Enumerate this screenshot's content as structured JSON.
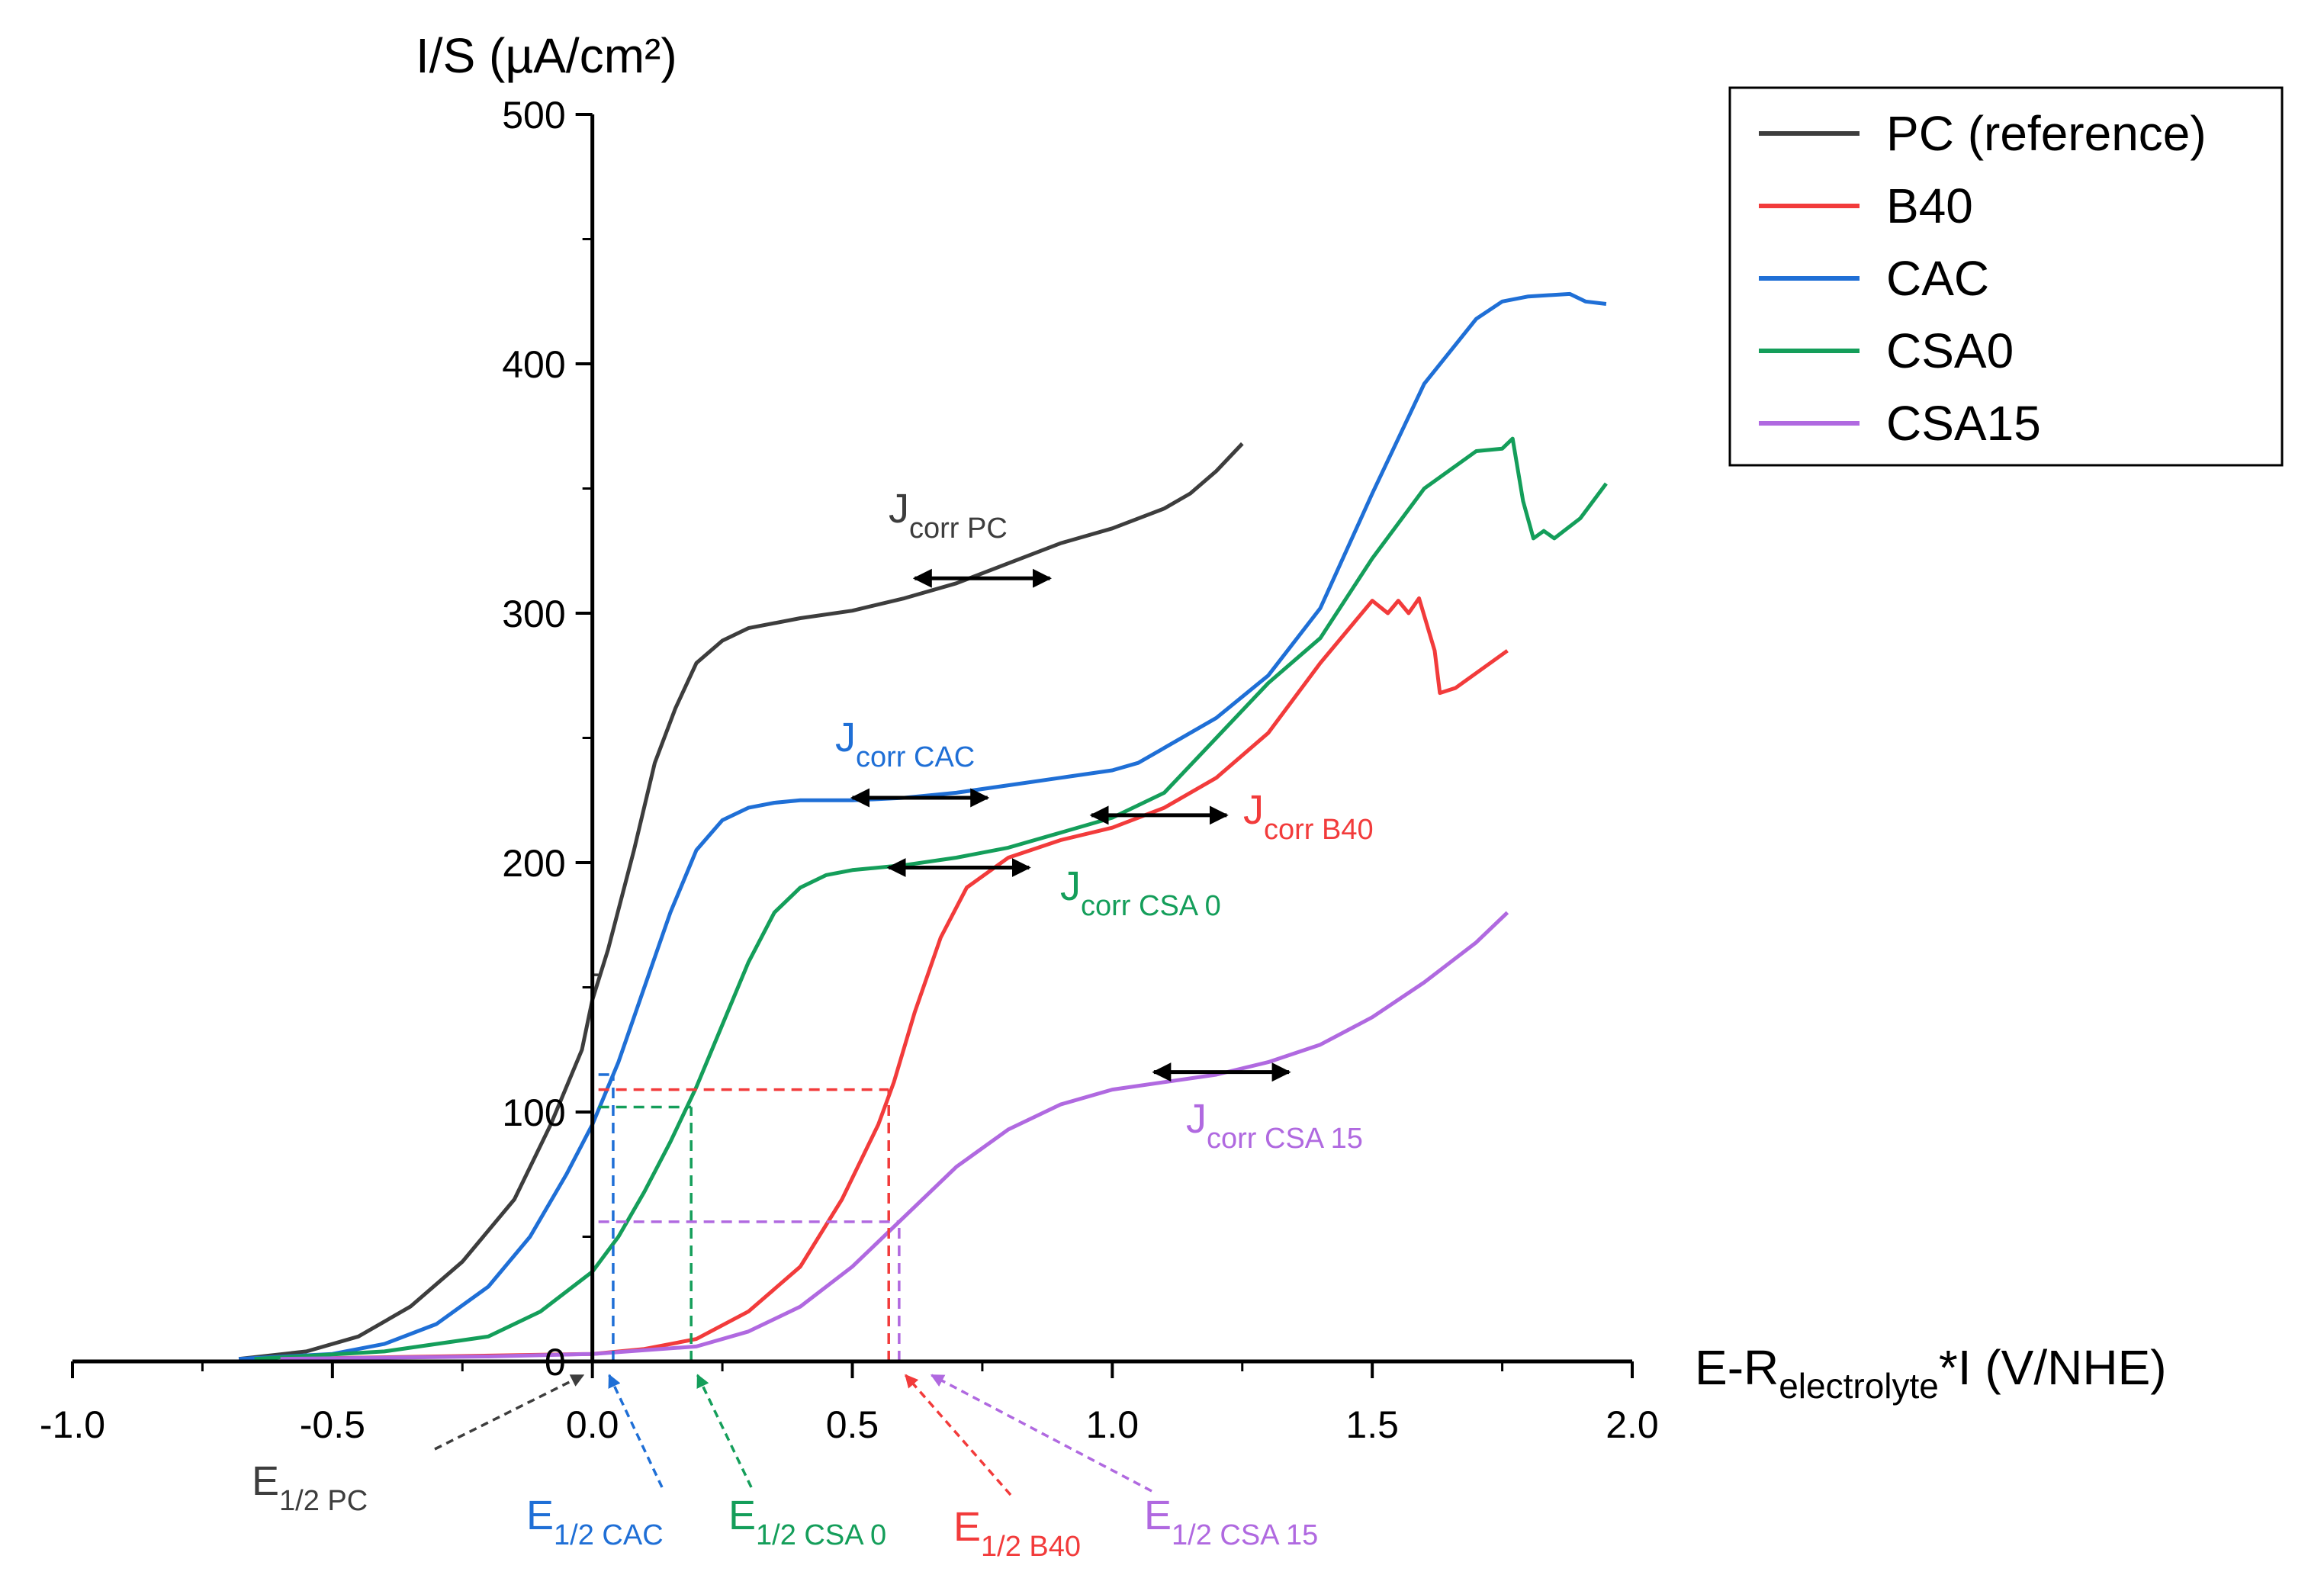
{
  "chart_data": {
    "type": "line",
    "title": "",
    "xlabel": {
      "main": "E-R",
      "sub": "electrolyte",
      "tail": "*I (V/NHE)"
    },
    "ylabel": "I/S (µA/cm²)",
    "xlim": [
      -1.0,
      2.0
    ],
    "ylim": [
      0,
      500
    ],
    "x_ticks": [
      -1.0,
      -0.5,
      0.0,
      0.5,
      1.0,
      1.5,
      2.0
    ],
    "x_tick_labels": [
      "-1.0",
      "-0.5",
      "0.0",
      "0.5",
      "1.0",
      "1.5",
      "2.0"
    ],
    "y_ticks": [
      0,
      100,
      200,
      300,
      400,
      500
    ],
    "y_tick_labels": [
      "0",
      "100",
      "200",
      "300",
      "400",
      "500"
    ],
    "grid": false,
    "legend_position": "top-right",
    "series": [
      {
        "name": "PC (reference)",
        "color": "#3d3d3d",
        "points": [
          [
            -0.68,
            1
          ],
          [
            -0.55,
            4
          ],
          [
            -0.45,
            10
          ],
          [
            -0.35,
            22
          ],
          [
            -0.25,
            40
          ],
          [
            -0.15,
            65
          ],
          [
            -0.08,
            95
          ],
          [
            -0.02,
            125
          ],
          [
            0.0,
            145
          ],
          [
            0.03,
            165
          ],
          [
            0.08,
            205
          ],
          [
            0.12,
            240
          ],
          [
            0.16,
            262
          ],
          [
            0.2,
            280
          ],
          [
            0.25,
            289
          ],
          [
            0.3,
            294
          ],
          [
            0.4,
            298
          ],
          [
            0.5,
            301
          ],
          [
            0.6,
            306
          ],
          [
            0.7,
            312
          ],
          [
            0.8,
            320
          ],
          [
            0.9,
            328
          ],
          [
            1.0,
            334
          ],
          [
            1.1,
            342
          ],
          [
            1.15,
            348
          ],
          [
            1.2,
            357
          ],
          [
            1.25,
            368
          ]
        ]
      },
      {
        "name": "B40",
        "color": "#f23b3b",
        "points": [
          [
            -0.6,
            1
          ],
          [
            -0.3,
            2
          ],
          [
            0.0,
            3
          ],
          [
            0.1,
            5
          ],
          [
            0.2,
            9
          ],
          [
            0.3,
            20
          ],
          [
            0.4,
            38
          ],
          [
            0.48,
            65
          ],
          [
            0.55,
            95
          ],
          [
            0.58,
            112
          ],
          [
            0.62,
            140
          ],
          [
            0.67,
            170
          ],
          [
            0.72,
            190
          ],
          [
            0.8,
            202
          ],
          [
            0.9,
            209
          ],
          [
            1.0,
            214
          ],
          [
            1.1,
            222
          ],
          [
            1.2,
            234
          ],
          [
            1.3,
            252
          ],
          [
            1.4,
            280
          ],
          [
            1.5,
            305
          ],
          [
            1.53,
            300
          ],
          [
            1.55,
            305
          ],
          [
            1.57,
            300
          ],
          [
            1.59,
            306
          ],
          [
            1.62,
            285
          ],
          [
            1.63,
            268
          ],
          [
            1.66,
            270
          ],
          [
            1.7,
            276
          ],
          [
            1.76,
            285
          ]
        ]
      },
      {
        "name": "CAC",
        "color": "#1f6fd6",
        "points": [
          [
            -0.68,
            1
          ],
          [
            -0.5,
            3
          ],
          [
            -0.4,
            7
          ],
          [
            -0.3,
            15
          ],
          [
            -0.2,
            30
          ],
          [
            -0.12,
            50
          ],
          [
            -0.05,
            75
          ],
          [
            0.0,
            95
          ],
          [
            0.05,
            120
          ],
          [
            0.1,
            150
          ],
          [
            0.15,
            180
          ],
          [
            0.2,
            205
          ],
          [
            0.25,
            217
          ],
          [
            0.3,
            222
          ],
          [
            0.35,
            224
          ],
          [
            0.4,
            225
          ],
          [
            0.5,
            225
          ],
          [
            0.6,
            226
          ],
          [
            0.7,
            228
          ],
          [
            0.8,
            231
          ],
          [
            0.9,
            234
          ],
          [
            1.0,
            237
          ],
          [
            1.05,
            240
          ],
          [
            1.1,
            246
          ],
          [
            1.2,
            258
          ],
          [
            1.3,
            275
          ],
          [
            1.4,
            302
          ],
          [
            1.5,
            348
          ],
          [
            1.6,
            392
          ],
          [
            1.7,
            418
          ],
          [
            1.75,
            425
          ],
          [
            1.8,
            427
          ],
          [
            1.88,
            428
          ],
          [
            1.91,
            425
          ],
          [
            1.95,
            424
          ]
        ]
      },
      {
        "name": "CSA0",
        "color": "#149e5a",
        "points": [
          [
            -0.65,
            1
          ],
          [
            -0.4,
            4
          ],
          [
            -0.2,
            10
          ],
          [
            -0.1,
            20
          ],
          [
            0.0,
            36
          ],
          [
            0.05,
            50
          ],
          [
            0.1,
            68
          ],
          [
            0.15,
            88
          ],
          [
            0.2,
            110
          ],
          [
            0.25,
            135
          ],
          [
            0.3,
            160
          ],
          [
            0.35,
            180
          ],
          [
            0.4,
            190
          ],
          [
            0.45,
            195
          ],
          [
            0.5,
            197
          ],
          [
            0.6,
            199
          ],
          [
            0.7,
            202
          ],
          [
            0.8,
            206
          ],
          [
            0.9,
            212
          ],
          [
            1.0,
            218
          ],
          [
            1.1,
            228
          ],
          [
            1.2,
            250
          ],
          [
            1.3,
            272
          ],
          [
            1.4,
            290
          ],
          [
            1.5,
            322
          ],
          [
            1.6,
            350
          ],
          [
            1.7,
            365
          ],
          [
            1.75,
            366
          ],
          [
            1.77,
            370
          ],
          [
            1.79,
            345
          ],
          [
            1.81,
            330
          ],
          [
            1.83,
            333
          ],
          [
            1.85,
            330
          ],
          [
            1.9,
            338
          ],
          [
            1.95,
            352
          ]
        ]
      },
      {
        "name": "CSA15",
        "color": "#b069e0",
        "points": [
          [
            -0.6,
            1
          ],
          [
            -0.2,
            2
          ],
          [
            0.0,
            3
          ],
          [
            0.2,
            6
          ],
          [
            0.3,
            12
          ],
          [
            0.4,
            22
          ],
          [
            0.5,
            38
          ],
          [
            0.6,
            58
          ],
          [
            0.7,
            78
          ],
          [
            0.8,
            93
          ],
          [
            0.9,
            103
          ],
          [
            1.0,
            109
          ],
          [
            1.1,
            112
          ],
          [
            1.2,
            115
          ],
          [
            1.3,
            120
          ],
          [
            1.4,
            127
          ],
          [
            1.5,
            138
          ],
          [
            1.6,
            152
          ],
          [
            1.7,
            168
          ],
          [
            1.76,
            180
          ]
        ]
      }
    ],
    "half_wave": [
      {
        "label_main": "E",
        "label_sub": "1/2 PC",
        "color": "#3d3d3d",
        "e": 0.0,
        "i": 155
      },
      {
        "label_main": "E",
        "label_sub": "1/2 CAC",
        "color": "#1f6fd6",
        "e": 0.04,
        "i": 115
      },
      {
        "label_main": "E",
        "label_sub": "1/2 CSA 0",
        "color": "#149e5a",
        "e": 0.19,
        "i": 102
      },
      {
        "label_main": "E",
        "label_sub": "1/2 B40",
        "color": "#f23b3b",
        "e": 0.57,
        "i": 109
      },
      {
        "label_main": "E",
        "label_sub": "1/2 CSA 15",
        "color": "#b069e0",
        "e": 0.59,
        "i": 56
      }
    ],
    "jcorr": [
      {
        "label_main": "J",
        "label_sub": "corr PC",
        "color": "#3d3d3d",
        "x1": 0.62,
        "x2": 0.88,
        "y": 314
      },
      {
        "label_main": "J",
        "label_sub": "corr CAC",
        "color": "#1f6fd6",
        "x1": 0.5,
        "x2": 0.76,
        "y": 226
      },
      {
        "label_main": "J",
        "label_sub": "corr B40",
        "color": "#f23b3b",
        "x1": 0.96,
        "x2": 1.22,
        "y": 219
      },
      {
        "label_main": "J",
        "label_sub": "corr CSA 0",
        "color": "#149e5a",
        "x1": 0.57,
        "x2": 0.84,
        "y": 198
      },
      {
        "label_main": "J",
        "label_sub": "corr CSA 15",
        "color": "#b069e0",
        "x1": 1.08,
        "x2": 1.34,
        "y": 116
      }
    ]
  }
}
